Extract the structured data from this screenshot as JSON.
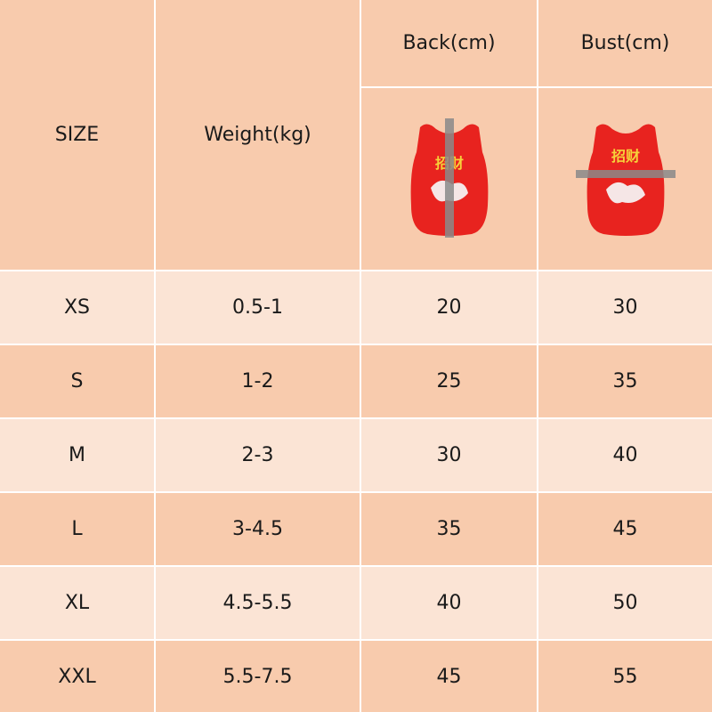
{
  "table": {
    "headers": [
      "SIZE",
      "Weight(kg)",
      "Back(cm)",
      "Bust(cm)"
    ],
    "images": [
      {
        "print": "招财"
      },
      {
        "print": "招财"
      }
    ],
    "rows": [
      [
        "XS",
        "0.5-1",
        20,
        30
      ],
      [
        "S",
        "1-2",
        25,
        35
      ],
      [
        "M",
        "2-3",
        30,
        40
      ],
      [
        "L",
        "3-4.5",
        35,
        45
      ],
      [
        "XL",
        "4.5-5.5",
        40,
        50
      ],
      [
        "XXL",
        "5.5-7.5",
        45,
        55
      ]
    ]
  }
}
